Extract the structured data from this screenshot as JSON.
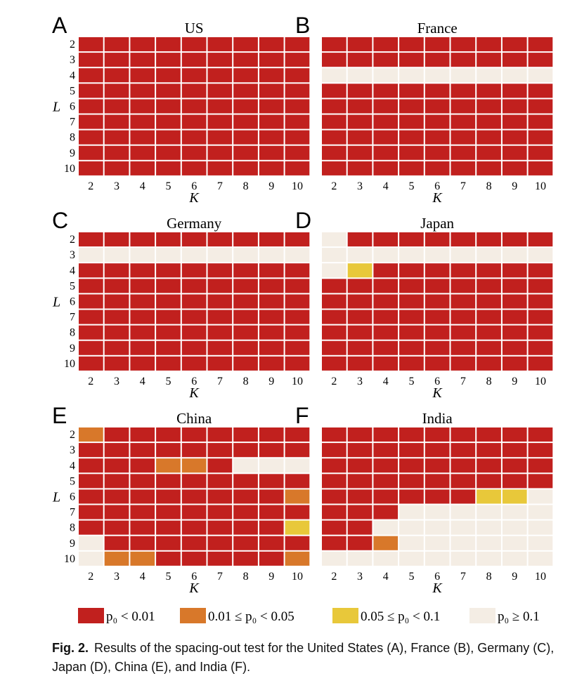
{
  "figure": {
    "colors": {
      "c0": "#c1201e",
      "c1": "#d8782a",
      "c2": "#e8c83a",
      "c3": "#f4ede4"
    },
    "legend": [
      {
        "key": "c0",
        "label": "p₀ < 0.01"
      },
      {
        "key": "c1",
        "label": "0.01 ≤ p₀ < 0.05"
      },
      {
        "key": "c2",
        "label": "0.05 ≤ p₀ < 0.1"
      },
      {
        "key": "c3",
        "label": "p₀ ≥ 0.1"
      }
    ],
    "caption": {
      "label": "Fig. 2.",
      "text": "Results of the spacing-out test for the United States (A), France (B), Germany (C), Japan (D), China (E), and India (F)."
    }
  },
  "chart_data": [
    {
      "type": "heatmap",
      "panel": "A",
      "title": "US",
      "xlabel": "K",
      "ylabel": "L",
      "x_ticks": [
        "2",
        "3",
        "4",
        "5",
        "6",
        "7",
        "8",
        "9",
        "10"
      ],
      "y_ticks": [
        "2",
        "3",
        "4",
        "5",
        "6",
        "7",
        "8",
        "9",
        "10"
      ],
      "cells": [
        [
          0,
          0,
          0,
          0,
          0,
          0,
          0,
          0,
          0
        ],
        [
          0,
          0,
          0,
          0,
          0,
          0,
          0,
          0,
          0
        ],
        [
          0,
          0,
          0,
          0,
          0,
          0,
          0,
          0,
          0
        ],
        [
          0,
          0,
          0,
          0,
          0,
          0,
          0,
          0,
          0
        ],
        [
          0,
          0,
          0,
          0,
          0,
          0,
          0,
          0,
          0
        ],
        [
          0,
          0,
          0,
          0,
          0,
          0,
          0,
          0,
          0
        ],
        [
          0,
          0,
          0,
          0,
          0,
          0,
          0,
          0,
          0
        ],
        [
          0,
          0,
          0,
          0,
          0,
          0,
          0,
          0,
          0
        ],
        [
          0,
          0,
          0,
          0,
          0,
          0,
          0,
          0,
          0
        ]
      ]
    },
    {
      "type": "heatmap",
      "panel": "B",
      "title": "France",
      "xlabel": "K",
      "ylabel": "",
      "x_ticks": [
        "2",
        "3",
        "4",
        "5",
        "6",
        "7",
        "8",
        "9",
        "10"
      ],
      "y_ticks": [],
      "cells": [
        [
          0,
          0,
          0,
          0,
          0,
          0,
          0,
          0,
          0
        ],
        [
          0,
          0,
          0,
          0,
          0,
          0,
          0,
          0,
          0
        ],
        [
          3,
          3,
          3,
          3,
          3,
          3,
          3,
          3,
          3
        ],
        [
          0,
          0,
          0,
          0,
          0,
          0,
          0,
          0,
          0
        ],
        [
          0,
          0,
          0,
          0,
          0,
          0,
          0,
          0,
          0
        ],
        [
          0,
          0,
          0,
          0,
          0,
          0,
          0,
          0,
          0
        ],
        [
          0,
          0,
          0,
          0,
          0,
          0,
          0,
          0,
          0
        ],
        [
          0,
          0,
          0,
          0,
          0,
          0,
          0,
          0,
          0
        ],
        [
          0,
          0,
          0,
          0,
          0,
          0,
          0,
          0,
          0
        ]
      ]
    },
    {
      "type": "heatmap",
      "panel": "C",
      "title": "Germany",
      "xlabel": "K",
      "ylabel": "L",
      "x_ticks": [
        "2",
        "3",
        "4",
        "5",
        "6",
        "7",
        "8",
        "9",
        "10"
      ],
      "y_ticks": [
        "2",
        "3",
        "4",
        "5",
        "6",
        "7",
        "8",
        "9",
        "10"
      ],
      "cells": [
        [
          0,
          0,
          0,
          0,
          0,
          0,
          0,
          0,
          0
        ],
        [
          3,
          3,
          3,
          3,
          3,
          3,
          3,
          3,
          3
        ],
        [
          0,
          0,
          0,
          0,
          0,
          0,
          0,
          0,
          0
        ],
        [
          0,
          0,
          0,
          0,
          0,
          0,
          0,
          0,
          0
        ],
        [
          0,
          0,
          0,
          0,
          0,
          0,
          0,
          0,
          0
        ],
        [
          0,
          0,
          0,
          0,
          0,
          0,
          0,
          0,
          0
        ],
        [
          0,
          0,
          0,
          0,
          0,
          0,
          0,
          0,
          0
        ],
        [
          0,
          0,
          0,
          0,
          0,
          0,
          0,
          0,
          0
        ],
        [
          0,
          0,
          0,
          0,
          0,
          0,
          0,
          0,
          0
        ]
      ]
    },
    {
      "type": "heatmap",
      "panel": "D",
      "title": "Japan",
      "xlabel": "K",
      "ylabel": "",
      "x_ticks": [
        "2",
        "3",
        "4",
        "5",
        "6",
        "7",
        "8",
        "9",
        "10"
      ],
      "y_ticks": [],
      "cells": [
        [
          3,
          0,
          0,
          0,
          0,
          0,
          0,
          0,
          0
        ],
        [
          3,
          3,
          3,
          3,
          3,
          3,
          3,
          3,
          3
        ],
        [
          3,
          2,
          0,
          0,
          0,
          0,
          0,
          0,
          0
        ],
        [
          0,
          0,
          0,
          0,
          0,
          0,
          0,
          0,
          0
        ],
        [
          0,
          0,
          0,
          0,
          0,
          0,
          0,
          0,
          0
        ],
        [
          0,
          0,
          0,
          0,
          0,
          0,
          0,
          0,
          0
        ],
        [
          0,
          0,
          0,
          0,
          0,
          0,
          0,
          0,
          0
        ],
        [
          0,
          0,
          0,
          0,
          0,
          0,
          0,
          0,
          0
        ],
        [
          0,
          0,
          0,
          0,
          0,
          0,
          0,
          0,
          0
        ]
      ]
    },
    {
      "type": "heatmap",
      "panel": "E",
      "title": "China",
      "xlabel": "K",
      "ylabel": "L",
      "x_ticks": [
        "2",
        "3",
        "4",
        "5",
        "6",
        "7",
        "8",
        "9",
        "10"
      ],
      "y_ticks": [
        "2",
        "3",
        "4",
        "5",
        "6",
        "7",
        "8",
        "9",
        "10"
      ],
      "cells": [
        [
          1,
          0,
          0,
          0,
          0,
          0,
          0,
          0,
          0
        ],
        [
          0,
          0,
          0,
          0,
          0,
          0,
          0,
          0,
          0
        ],
        [
          0,
          0,
          0,
          1,
          1,
          0,
          3,
          3,
          3
        ],
        [
          0,
          0,
          0,
          0,
          0,
          0,
          0,
          0,
          0
        ],
        [
          0,
          0,
          0,
          0,
          0,
          0,
          0,
          0,
          1
        ],
        [
          0,
          0,
          0,
          0,
          0,
          0,
          0,
          0,
          0
        ],
        [
          0,
          0,
          0,
          0,
          0,
          0,
          0,
          0,
          2
        ],
        [
          3,
          0,
          0,
          0,
          0,
          0,
          0,
          0,
          0
        ],
        [
          3,
          1,
          1,
          0,
          0,
          0,
          0,
          0,
          1
        ]
      ]
    },
    {
      "type": "heatmap",
      "panel": "F",
      "title": "India",
      "xlabel": "K",
      "ylabel": "",
      "x_ticks": [
        "2",
        "3",
        "4",
        "5",
        "6",
        "7",
        "8",
        "9",
        "10"
      ],
      "y_ticks": [],
      "cells": [
        [
          0,
          0,
          0,
          0,
          0,
          0,
          0,
          0,
          0
        ],
        [
          0,
          0,
          0,
          0,
          0,
          0,
          0,
          0,
          0
        ],
        [
          0,
          0,
          0,
          0,
          0,
          0,
          0,
          0,
          0
        ],
        [
          0,
          0,
          0,
          0,
          0,
          0,
          0,
          0,
          0
        ],
        [
          0,
          0,
          0,
          0,
          0,
          0,
          2,
          2,
          3
        ],
        [
          0,
          0,
          0,
          3,
          3,
          3,
          3,
          3,
          3
        ],
        [
          0,
          0,
          3,
          3,
          3,
          3,
          3,
          3,
          3
        ],
        [
          0,
          0,
          1,
          3,
          3,
          3,
          3,
          3,
          3
        ],
        [
          3,
          3,
          3,
          3,
          3,
          3,
          3,
          3,
          3
        ]
      ]
    }
  ]
}
